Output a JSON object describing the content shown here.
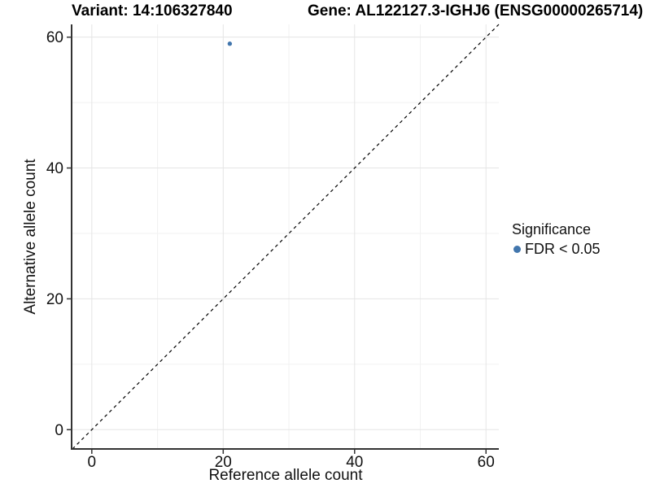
{
  "titles": {
    "variant": "Variant: 14:106327840",
    "gene": "Gene: AL122127.3-IGHJ6 (ENSG00000265714)"
  },
  "chart_data": {
    "type": "scatter",
    "xlabel": "Reference allele count",
    "ylabel": "Alternative allele count",
    "x_ticks": [
      0,
      20,
      40,
      60
    ],
    "y_ticks": [
      0,
      20,
      40,
      60
    ],
    "x_minor_ticks": [
      10,
      30,
      50
    ],
    "y_minor_ticks": [
      10,
      30,
      50
    ],
    "xlim": [
      0,
      59
    ],
    "ylim": [
      0,
      59
    ],
    "expanded_range": [
      -2.95,
      61.95
    ],
    "grid": "major+minor",
    "points": [
      {
        "x": 21,
        "y": 59,
        "series": "FDR < 0.05"
      }
    ],
    "reference_line": {
      "type": "identity y=x",
      "style": "dashed",
      "color": "#000000"
    },
    "legend": {
      "title": "Significance",
      "position": "right",
      "entries": [
        {
          "label": "FDR < 0.05",
          "color": "#4276ad"
        }
      ]
    },
    "colors": {
      "point": "#4276ad",
      "axis_line": "#333333",
      "tick_mark": "#333333",
      "tick_label": "#111111",
      "grid_major": "#e5e5e5",
      "grid_minor": "#f2f2f2",
      "background": "#ffffff"
    }
  }
}
